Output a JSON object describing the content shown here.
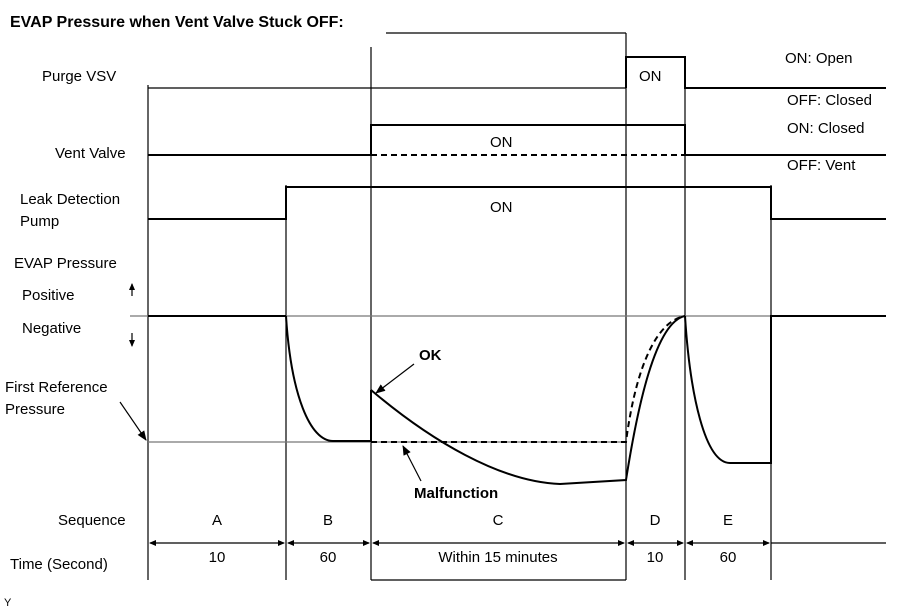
{
  "title": "EVAP Pressure when Vent Valve Stuck OFF:",
  "rows": {
    "purge_vsv": "Purge VSV",
    "vent_valve": "Vent Valve",
    "leak_pump_line1": "Leak Detection",
    "leak_pump_line2": "Pump",
    "evap_pressure": "EVAP Pressure",
    "positive": "Positive",
    "negative": "Negative",
    "first_ref_line1": "First Reference",
    "first_ref_line2": "Pressure",
    "sequence": "Sequence",
    "time": "Time (Second)"
  },
  "states": {
    "purge_on": "ON: Open",
    "purge_off": "OFF: Closed",
    "vent_on": "ON: Closed",
    "vent_off": "OFF: Vent"
  },
  "on_labels": {
    "purge": "ON",
    "vent": "ON",
    "pump": "ON"
  },
  "curve_labels": {
    "ok": "OK",
    "malfunction": "Malfunction"
  },
  "sequence": [
    "A",
    "B",
    "C",
    "D",
    "E"
  ],
  "times": [
    "10",
    "60",
    "Within 15 minutes",
    "10",
    "60"
  ],
  "footer_code": "Y"
}
